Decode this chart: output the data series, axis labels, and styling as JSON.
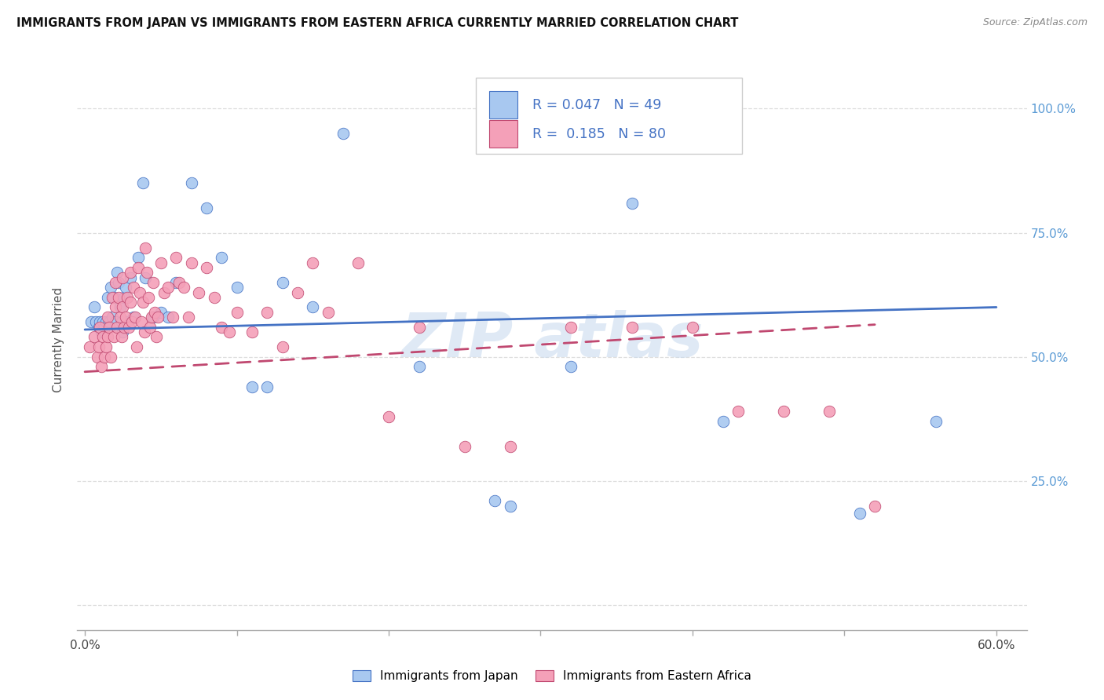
{
  "title": "IMMIGRANTS FROM JAPAN VS IMMIGRANTS FROM EASTERN AFRICA CURRENTLY MARRIED CORRELATION CHART",
  "source": "Source: ZipAtlas.com",
  "ylabel": "Currently Married",
  "japan_R": 0.047,
  "japan_N": 49,
  "africa_R": 0.185,
  "africa_N": 80,
  "japan_color": "#A8C8F0",
  "africa_color": "#F4A0B8",
  "japan_line_color": "#4472C4",
  "africa_line_color": "#C04870",
  "right_tick_color": "#5B9BD5",
  "grid_color": "#DDDDDD",
  "japan_x": [
    0.004,
    0.006,
    0.007,
    0.009,
    0.01,
    0.011,
    0.012,
    0.013,
    0.014,
    0.015,
    0.016,
    0.017,
    0.018,
    0.019,
    0.02,
    0.021,
    0.022,
    0.023,
    0.024,
    0.025,
    0.026,
    0.027,
    0.028,
    0.03,
    0.032,
    0.035,
    0.038,
    0.04,
    0.045,
    0.05,
    0.055,
    0.06,
    0.07,
    0.08,
    0.09,
    0.1,
    0.11,
    0.12,
    0.13,
    0.15,
    0.17,
    0.22,
    0.27,
    0.28,
    0.32,
    0.36,
    0.42,
    0.51,
    0.56
  ],
  "japan_y": [
    0.57,
    0.6,
    0.57,
    0.56,
    0.57,
    0.55,
    0.57,
    0.56,
    0.57,
    0.62,
    0.57,
    0.64,
    0.58,
    0.62,
    0.57,
    0.67,
    0.65,
    0.6,
    0.57,
    0.55,
    0.62,
    0.64,
    0.57,
    0.66,
    0.58,
    0.7,
    0.85,
    0.66,
    0.58,
    0.59,
    0.58,
    0.65,
    0.85,
    0.8,
    0.7,
    0.64,
    0.44,
    0.44,
    0.65,
    0.6,
    0.95,
    0.48,
    0.21,
    0.2,
    0.48,
    0.81,
    0.37,
    0.185,
    0.37
  ],
  "africa_x": [
    0.003,
    0.006,
    0.008,
    0.009,
    0.01,
    0.011,
    0.012,
    0.013,
    0.014,
    0.015,
    0.015,
    0.016,
    0.017,
    0.018,
    0.019,
    0.02,
    0.02,
    0.021,
    0.022,
    0.023,
    0.024,
    0.025,
    0.025,
    0.026,
    0.027,
    0.028,
    0.029,
    0.03,
    0.03,
    0.031,
    0.032,
    0.033,
    0.034,
    0.035,
    0.036,
    0.037,
    0.038,
    0.039,
    0.04,
    0.041,
    0.042,
    0.043,
    0.044,
    0.045,
    0.046,
    0.047,
    0.048,
    0.05,
    0.052,
    0.055,
    0.058,
    0.06,
    0.062,
    0.065,
    0.068,
    0.07,
    0.075,
    0.08,
    0.085,
    0.09,
    0.095,
    0.1,
    0.11,
    0.12,
    0.13,
    0.14,
    0.15,
    0.16,
    0.18,
    0.2,
    0.22,
    0.25,
    0.28,
    0.32,
    0.36,
    0.4,
    0.43,
    0.46,
    0.49,
    0.52
  ],
  "africa_y": [
    0.52,
    0.54,
    0.5,
    0.52,
    0.56,
    0.48,
    0.54,
    0.5,
    0.52,
    0.58,
    0.54,
    0.56,
    0.5,
    0.62,
    0.54,
    0.65,
    0.6,
    0.56,
    0.62,
    0.58,
    0.54,
    0.66,
    0.6,
    0.56,
    0.58,
    0.62,
    0.56,
    0.67,
    0.61,
    0.57,
    0.64,
    0.58,
    0.52,
    0.68,
    0.63,
    0.57,
    0.61,
    0.55,
    0.72,
    0.67,
    0.62,
    0.56,
    0.58,
    0.65,
    0.59,
    0.54,
    0.58,
    0.69,
    0.63,
    0.64,
    0.58,
    0.7,
    0.65,
    0.64,
    0.58,
    0.69,
    0.63,
    0.68,
    0.62,
    0.56,
    0.55,
    0.59,
    0.55,
    0.59,
    0.52,
    0.63,
    0.69,
    0.59,
    0.69,
    0.38,
    0.56,
    0.32,
    0.32,
    0.56,
    0.56,
    0.56,
    0.39,
    0.39,
    0.39,
    0.2
  ],
  "japan_line_x": [
    0.0,
    0.6
  ],
  "japan_line_y": [
    0.555,
    0.6
  ],
  "africa_line_x": [
    0.0,
    0.52
  ],
  "africa_line_y": [
    0.47,
    0.565
  ],
  "xlim": [
    -0.005,
    0.62
  ],
  "ylim": [
    -0.05,
    1.12
  ],
  "yticks": [
    0.0,
    0.25,
    0.5,
    0.75,
    1.0
  ],
  "ytick_labels_right": [
    "",
    "25.0%",
    "50.0%",
    "75.0%",
    "100.0%"
  ],
  "xticks": [
    0.0,
    0.1,
    0.2,
    0.3,
    0.4,
    0.5,
    0.6
  ],
  "xtick_labels": [
    "0.0%",
    "",
    "",
    "",
    "",
    "",
    "60.0%"
  ]
}
